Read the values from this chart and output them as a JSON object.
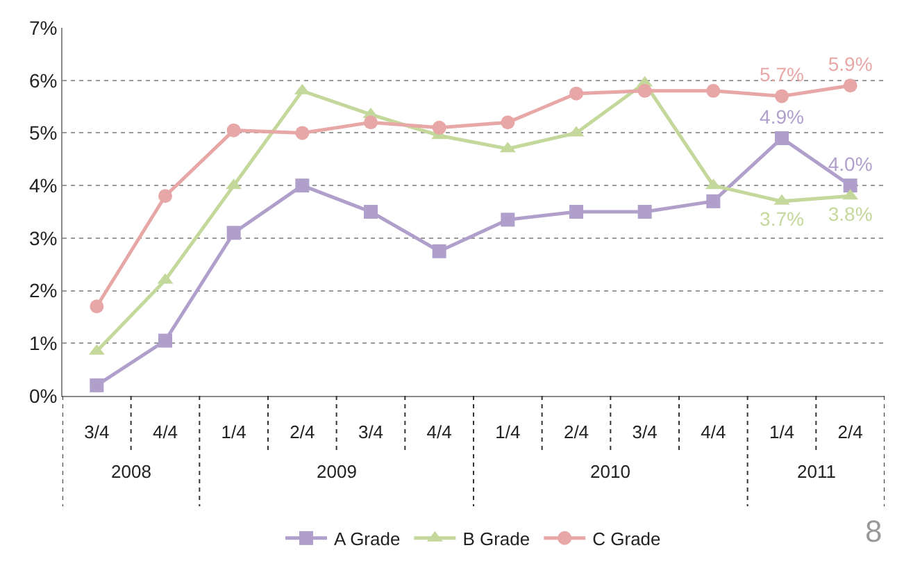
{
  "chart_data": {
    "type": "line",
    "categories": [
      "3/4",
      "4/4",
      "1/4",
      "2/4",
      "3/4",
      "4/4",
      "1/4",
      "2/4",
      "3/4",
      "4/4",
      "1/4",
      "2/4"
    ],
    "series": [
      {
        "name": "A Grade",
        "color": "#b09fcb",
        "marker": "square",
        "values": [
          0.2,
          1.05,
          3.1,
          4.0,
          3.5,
          2.75,
          3.35,
          3.5,
          3.5,
          3.7,
          4.9,
          4.0
        ],
        "value_labels": [
          null,
          null,
          null,
          null,
          null,
          null,
          null,
          null,
          null,
          null,
          "4.9%",
          "4.0%"
        ]
      },
      {
        "name": "B Grade",
        "color": "#c3d89a",
        "marker": "triangle",
        "values": [
          0.85,
          2.2,
          4.0,
          5.8,
          5.35,
          4.95,
          4.7,
          5.0,
          5.95,
          4.0,
          3.7,
          3.8
        ],
        "value_labels": [
          null,
          null,
          null,
          null,
          null,
          null,
          null,
          null,
          null,
          null,
          "3.7%",
          "3.8%"
        ]
      },
      {
        "name": "C Grade",
        "color": "#e8a7a7",
        "marker": "circle",
        "values": [
          1.7,
          3.8,
          5.05,
          5.0,
          5.2,
          5.1,
          5.2,
          5.75,
          5.8,
          5.8,
          5.7,
          5.9
        ],
        "value_labels": [
          null,
          null,
          null,
          null,
          null,
          null,
          null,
          null,
          null,
          null,
          "5.7%",
          "5.9%"
        ]
      }
    ],
    "ylim": [
      0,
      7
    ],
    "yticks": [
      {
        "value": 0,
        "label": "0%"
      },
      {
        "value": 1,
        "label": "1%"
      },
      {
        "value": 2,
        "label": "2%"
      },
      {
        "value": 3,
        "label": "3%"
      },
      {
        "value": 4,
        "label": "4%"
      },
      {
        "value": 5,
        "label": "5%"
      },
      {
        "value": 6,
        "label": "6%"
      },
      {
        "value": 7,
        "label": "7%"
      }
    ],
    "grid": "y",
    "legend": "bottom",
    "line_style": "solid",
    "annotations": [
      "2008",
      "2009",
      "2010",
      "2011",
      "8"
    ]
  }
}
